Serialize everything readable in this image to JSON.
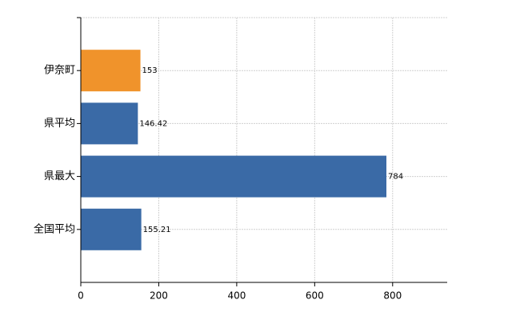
{
  "chart_data": {
    "type": "hbar",
    "categories": [
      "伊奈町",
      "県平均",
      "県最大",
      "全国平均"
    ],
    "values": [
      153,
      146.42,
      784,
      155.21
    ],
    "colors": [
      "#f0932b",
      "#3a6aa6",
      "#3a6aa6",
      "#3a6aa6"
    ],
    "xlim": [
      0,
      940
    ],
    "xticks": [
      0,
      200,
      400,
      600,
      800
    ],
    "grid": true
  }
}
